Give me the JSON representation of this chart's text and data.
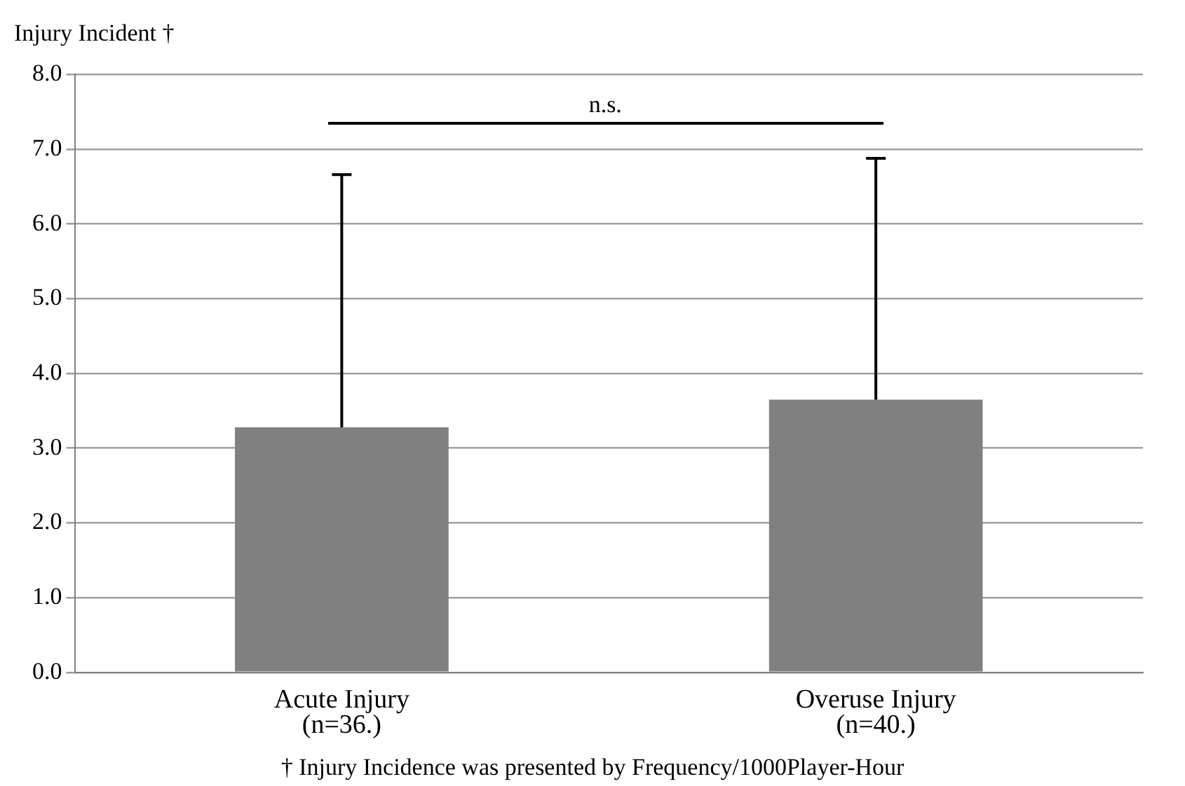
{
  "chart_data": {
    "type": "bar",
    "ylabel": "Injury Incident †",
    "categories": [
      "Acute Injury\n(n=36.)",
      "Overuse Injury\n(n=40.)"
    ],
    "values": [
      3.28,
      3.65
    ],
    "color": "#808080",
    "errors": [
      [
        3.28,
        6.66
      ],
      [
        3.65,
        6.88
      ]
    ],
    "ylim": [
      0,
      8
    ],
    "yticks": [
      {
        "value": 0,
        "label": "0.0"
      },
      {
        "value": 1,
        "label": "1.0"
      },
      {
        "value": 2,
        "label": "2.0"
      },
      {
        "value": 3,
        "label": "3.0"
      },
      {
        "value": 4,
        "label": "4.0"
      },
      {
        "value": 5,
        "label": "5.0"
      },
      {
        "value": 6,
        "label": "6.0"
      },
      {
        "value": 7,
        "label": "7.0"
      },
      {
        "value": 8,
        "label": "8.0"
      }
    ],
    "grid": "y",
    "legend": false,
    "annotations": [
      "n.s.",
      "† Injury Incidence was presented by Frequency/1000Player-Hour"
    ]
  }
}
